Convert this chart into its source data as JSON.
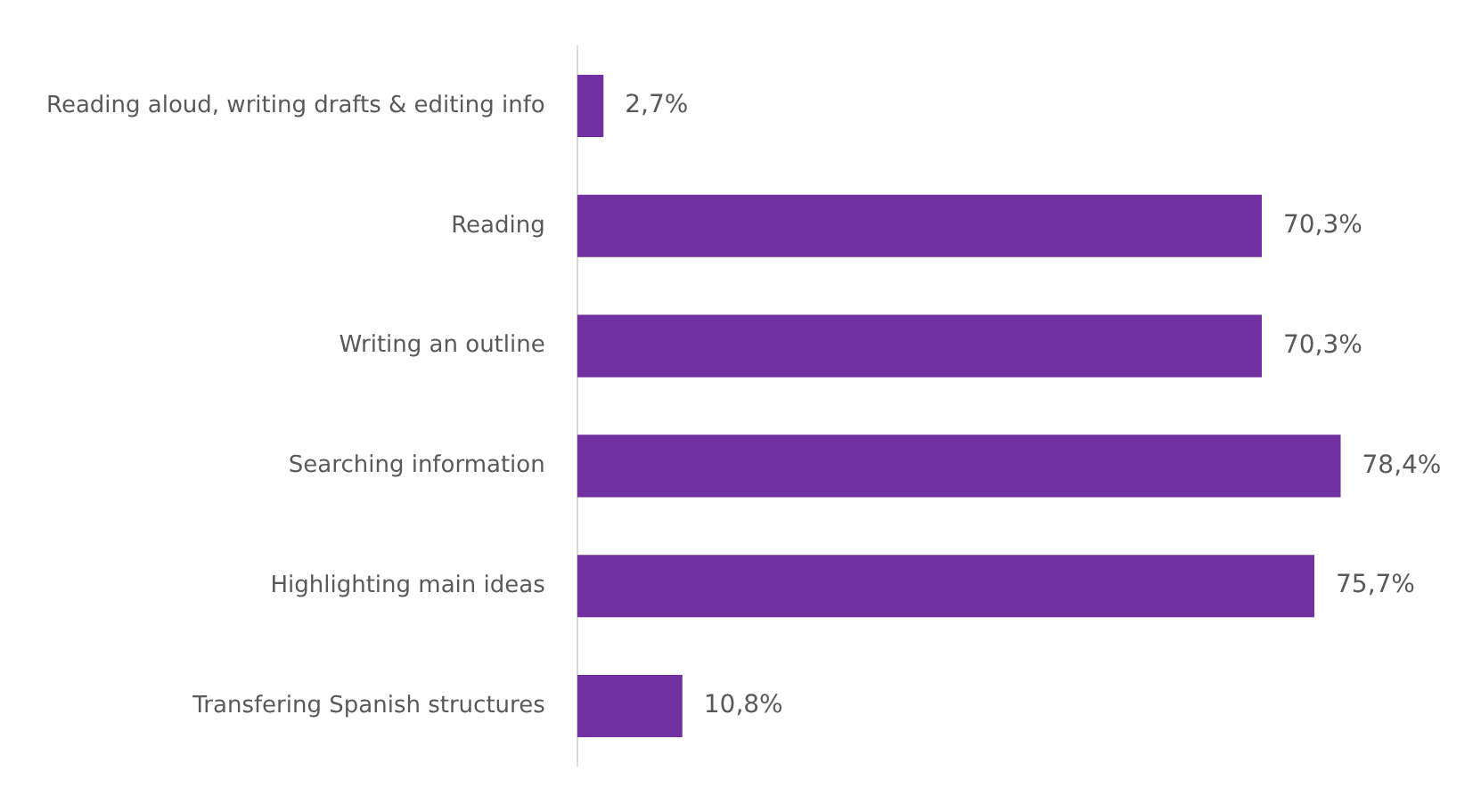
{
  "chart_data": {
    "type": "bar",
    "orientation": "horizontal",
    "categories": [
      "Reading aloud, writing drafts & editing info",
      "Reading",
      "Writing an outline",
      "Searching information",
      "Highlighting main ideas",
      "Transfering Spanish structures"
    ],
    "values": [
      2.7,
      70.3,
      70.3,
      78.4,
      75.7,
      10.8
    ],
    "color": "#7030a0",
    "value_labels": [
      "2,7%",
      "70,3%",
      "70,3%",
      "78,4%",
      "75,7%",
      "10,8%"
    ],
    "legend": false,
    "tick_labels": "y"
  }
}
